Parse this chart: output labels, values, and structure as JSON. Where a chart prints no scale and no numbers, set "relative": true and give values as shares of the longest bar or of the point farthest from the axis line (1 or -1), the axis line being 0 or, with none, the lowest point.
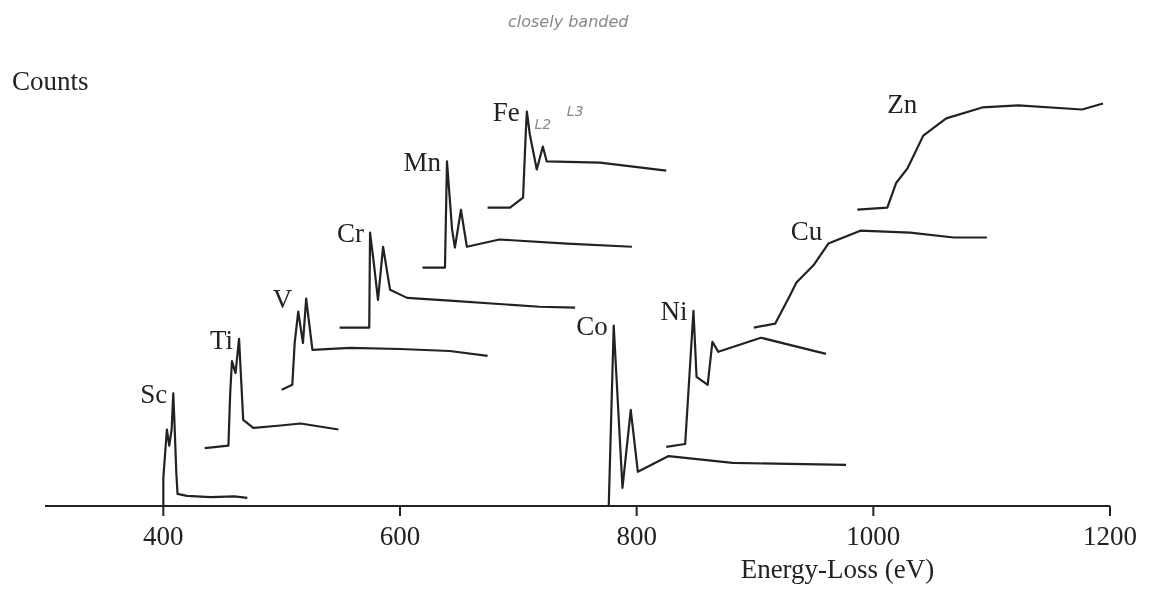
{
  "chart_data": {
    "type": "line",
    "relative": true,
    "ylabel": "Counts",
    "xlabel": "Energy-Loss (eV)",
    "xlim": [
      300,
      1200
    ],
    "xticks": [
      400,
      600,
      800,
      1000,
      1200
    ],
    "line_style": "solid",
    "annotations": [
      "closely banded",
      {
        "text": "L3",
        "x": 707.2,
        "y": 0.98
      },
      {
        "text": "L2",
        "x": 720.7,
        "y": 0.893
      }
    ],
    "series": [
      {
        "name": "Sc",
        "color": "#222222",
        "x": [
          400,
          400,
          403,
          405,
          407,
          408.4,
          409.5,
          411,
          412,
          420,
          440,
          460,
          471
        ],
        "values": [
          0,
          0.07,
          0.19,
          0.15,
          0.19,
          0.28,
          0.2,
          0.08,
          0.03,
          0.025,
          0.022,
          0.024,
          0.02
        ]
      },
      {
        "name": "Ti",
        "color": "#222222",
        "x": [
          435,
          455,
          456.5,
          458,
          461,
          464,
          466,
          467.5,
          476,
          499,
          516,
          548
        ],
        "values": [
          0.144,
          0.15,
          0.28,
          0.36,
          0.33,
          0.415,
          0.3,
          0.214,
          0.194,
          0.2,
          0.205,
          0.19
        ]
      },
      {
        "name": "V",
        "color": "#222222",
        "x": [
          500,
          509,
          511,
          514,
          518,
          520.7,
          526,
          558,
          600,
          642,
          674
        ],
        "values": [
          0.289,
          0.301,
          0.405,
          0.483,
          0.405,
          0.515,
          0.388,
          0.393,
          0.39,
          0.385,
          0.373
        ]
      },
      {
        "name": "Cr",
        "color": "#222222",
        "x": [
          549,
          574,
          574.7,
          578,
          581.4,
          585.7,
          591.6,
          606,
          642,
          718,
          748
        ],
        "values": [
          0.443,
          0.443,
          0.679,
          0.6,
          0.512,
          0.644,
          0.537,
          0.517,
          0.51,
          0.495,
          0.493
        ]
      },
      {
        "name": "Mn",
        "color": "#222222",
        "x": [
          619,
          638,
          639.7,
          644,
          646.4,
          651.5,
          656.5,
          684,
          741,
          796
        ],
        "values": [
          0.592,
          0.592,
          0.856,
          0.687,
          0.642,
          0.736,
          0.644,
          0.662,
          0.652,
          0.644
        ]
      },
      {
        "name": "Fe",
        "color": "#222222",
        "x": [
          674,
          693,
          704,
          706.3,
          707.2,
          709.7,
          715.6,
          720.7,
          724,
          769,
          825
        ],
        "values": [
          0.741,
          0.741,
          0.766,
          0.928,
          0.98,
          0.923,
          0.836,
          0.893,
          0.856,
          0.853,
          0.833
        ]
      },
      {
        "name": "Co",
        "color": "#222222",
        "x": [
          776.4,
          780.6,
          788,
          795,
          801,
          827,
          881,
          977
        ],
        "values": [
          0,
          0.448,
          0.045,
          0.239,
          0.085,
          0.124,
          0.107,
          0.102
        ]
      },
      {
        "name": "Ni",
        "color": "#222222",
        "x": [
          825,
          841,
          848,
          850.6,
          860,
          864,
          869,
          905,
          960
        ],
        "values": [
          0.147,
          0.154,
          0.485,
          0.321,
          0.301,
          0.408,
          0.383,
          0.418,
          0.378
        ]
      },
      {
        "name": "Cu",
        "color": "#222222",
        "x": [
          899,
          917,
          929,
          935,
          950,
          962,
          989,
          1031,
          1068,
          1096
        ],
        "values": [
          0.443,
          0.453,
          0.52,
          0.555,
          0.6,
          0.652,
          0.684,
          0.679,
          0.667,
          0.667
        ]
      },
      {
        "name": "Zn",
        "color": "#222222",
        "x": [
          986.5,
          1011.8,
          1019.4,
          1028.7,
          1042.2,
          1061.6,
          1092,
          1122.4,
          1176.4,
          1194.1
        ],
        "values": [
          0.736,
          0.741,
          0.803,
          0.838,
          0.92,
          0.963,
          0.99,
          0.995,
          0.985,
          1
        ]
      }
    ]
  }
}
